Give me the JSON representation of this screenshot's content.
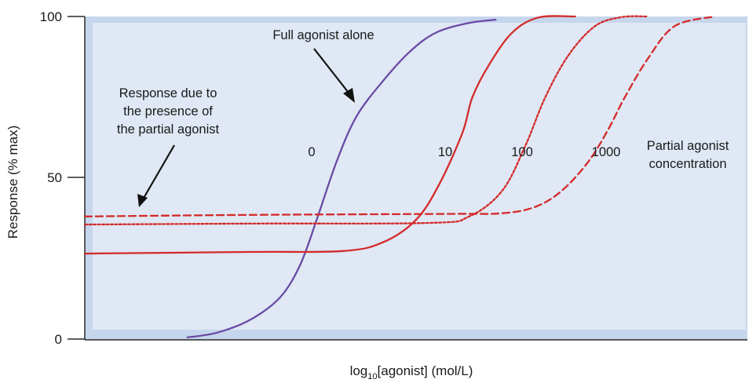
{
  "chart_data": {
    "type": "line",
    "title": "",
    "xlabel_main": "log",
    "xlabel_sub": "10",
    "xlabel_rest": "[agonist] (mol/L)",
    "ylabel": "Response (% max)",
    "ylim": [
      0,
      100
    ],
    "xlim": [
      0,
      10
    ],
    "y_ticks": [
      "0",
      "50",
      "100"
    ],
    "grid": false,
    "colors": {
      "plot_bg": "#dfe8f4",
      "plot_frame": "#c6d6ec",
      "full_agonist": "#6a4aa5",
      "partial_agonist": "#d42a2a",
      "axis": "#2a2a2a"
    },
    "series": [
      {
        "name": "0",
        "style": "solid",
        "color": "#6a4aa5",
        "points": [
          [
            1.55,
            0.5
          ],
          [
            2.0,
            2.0
          ],
          [
            2.5,
            6
          ],
          [
            2.95,
            13
          ],
          [
            3.25,
            23
          ],
          [
            3.5,
            37
          ],
          [
            3.8,
            55
          ],
          [
            4.1,
            69
          ],
          [
            4.5,
            80
          ],
          [
            4.9,
            89
          ],
          [
            5.3,
            95
          ],
          [
            5.8,
            98
          ],
          [
            6.2,
            99
          ]
        ]
      },
      {
        "name": "10",
        "style": "solid",
        "color": "#d42a2a",
        "points": [
          [
            0.0,
            26.5
          ],
          [
            2.5,
            27
          ],
          [
            3.9,
            27.3
          ],
          [
            4.5,
            30
          ],
          [
            5.0,
            37
          ],
          [
            5.35,
            48
          ],
          [
            5.7,
            64
          ],
          [
            5.85,
            75
          ],
          [
            6.1,
            85
          ],
          [
            6.45,
            95
          ],
          [
            6.85,
            99.7
          ],
          [
            7.4,
            100
          ]
        ]
      },
      {
        "name": "100",
        "style": "dotted",
        "color": "#d42a2a",
        "points": [
          [
            0.0,
            35.5
          ],
          [
            2.5,
            35.8
          ],
          [
            5.2,
            36
          ],
          [
            5.8,
            38
          ],
          [
            6.3,
            46
          ],
          [
            6.65,
            60
          ],
          [
            6.95,
            75
          ],
          [
            7.3,
            88
          ],
          [
            7.7,
            97
          ],
          [
            8.1,
            99.8
          ],
          [
            8.5,
            100
          ]
        ]
      },
      {
        "name": "1000",
        "style": "dashed",
        "color": "#d42a2a",
        "points": [
          [
            0.0,
            38
          ],
          [
            2.5,
            38.5
          ],
          [
            5.5,
            38.8
          ],
          [
            6.3,
            39
          ],
          [
            6.8,
            41
          ],
          [
            7.2,
            46
          ],
          [
            7.6,
            55
          ],
          [
            7.9,
            65
          ],
          [
            8.15,
            75
          ],
          [
            8.5,
            87
          ],
          [
            8.9,
            97
          ],
          [
            9.5,
            100
          ]
        ]
      }
    ],
    "curve_labels": [
      "0",
      "10",
      "100",
      "1000"
    ],
    "annotations": {
      "full_agonist": "Full agonist alone",
      "partial_response": [
        "Response due to",
        "the presence of",
        "the partial agonist"
      ],
      "partial_conc": [
        "Partial agonist",
        "concentration"
      ]
    }
  }
}
